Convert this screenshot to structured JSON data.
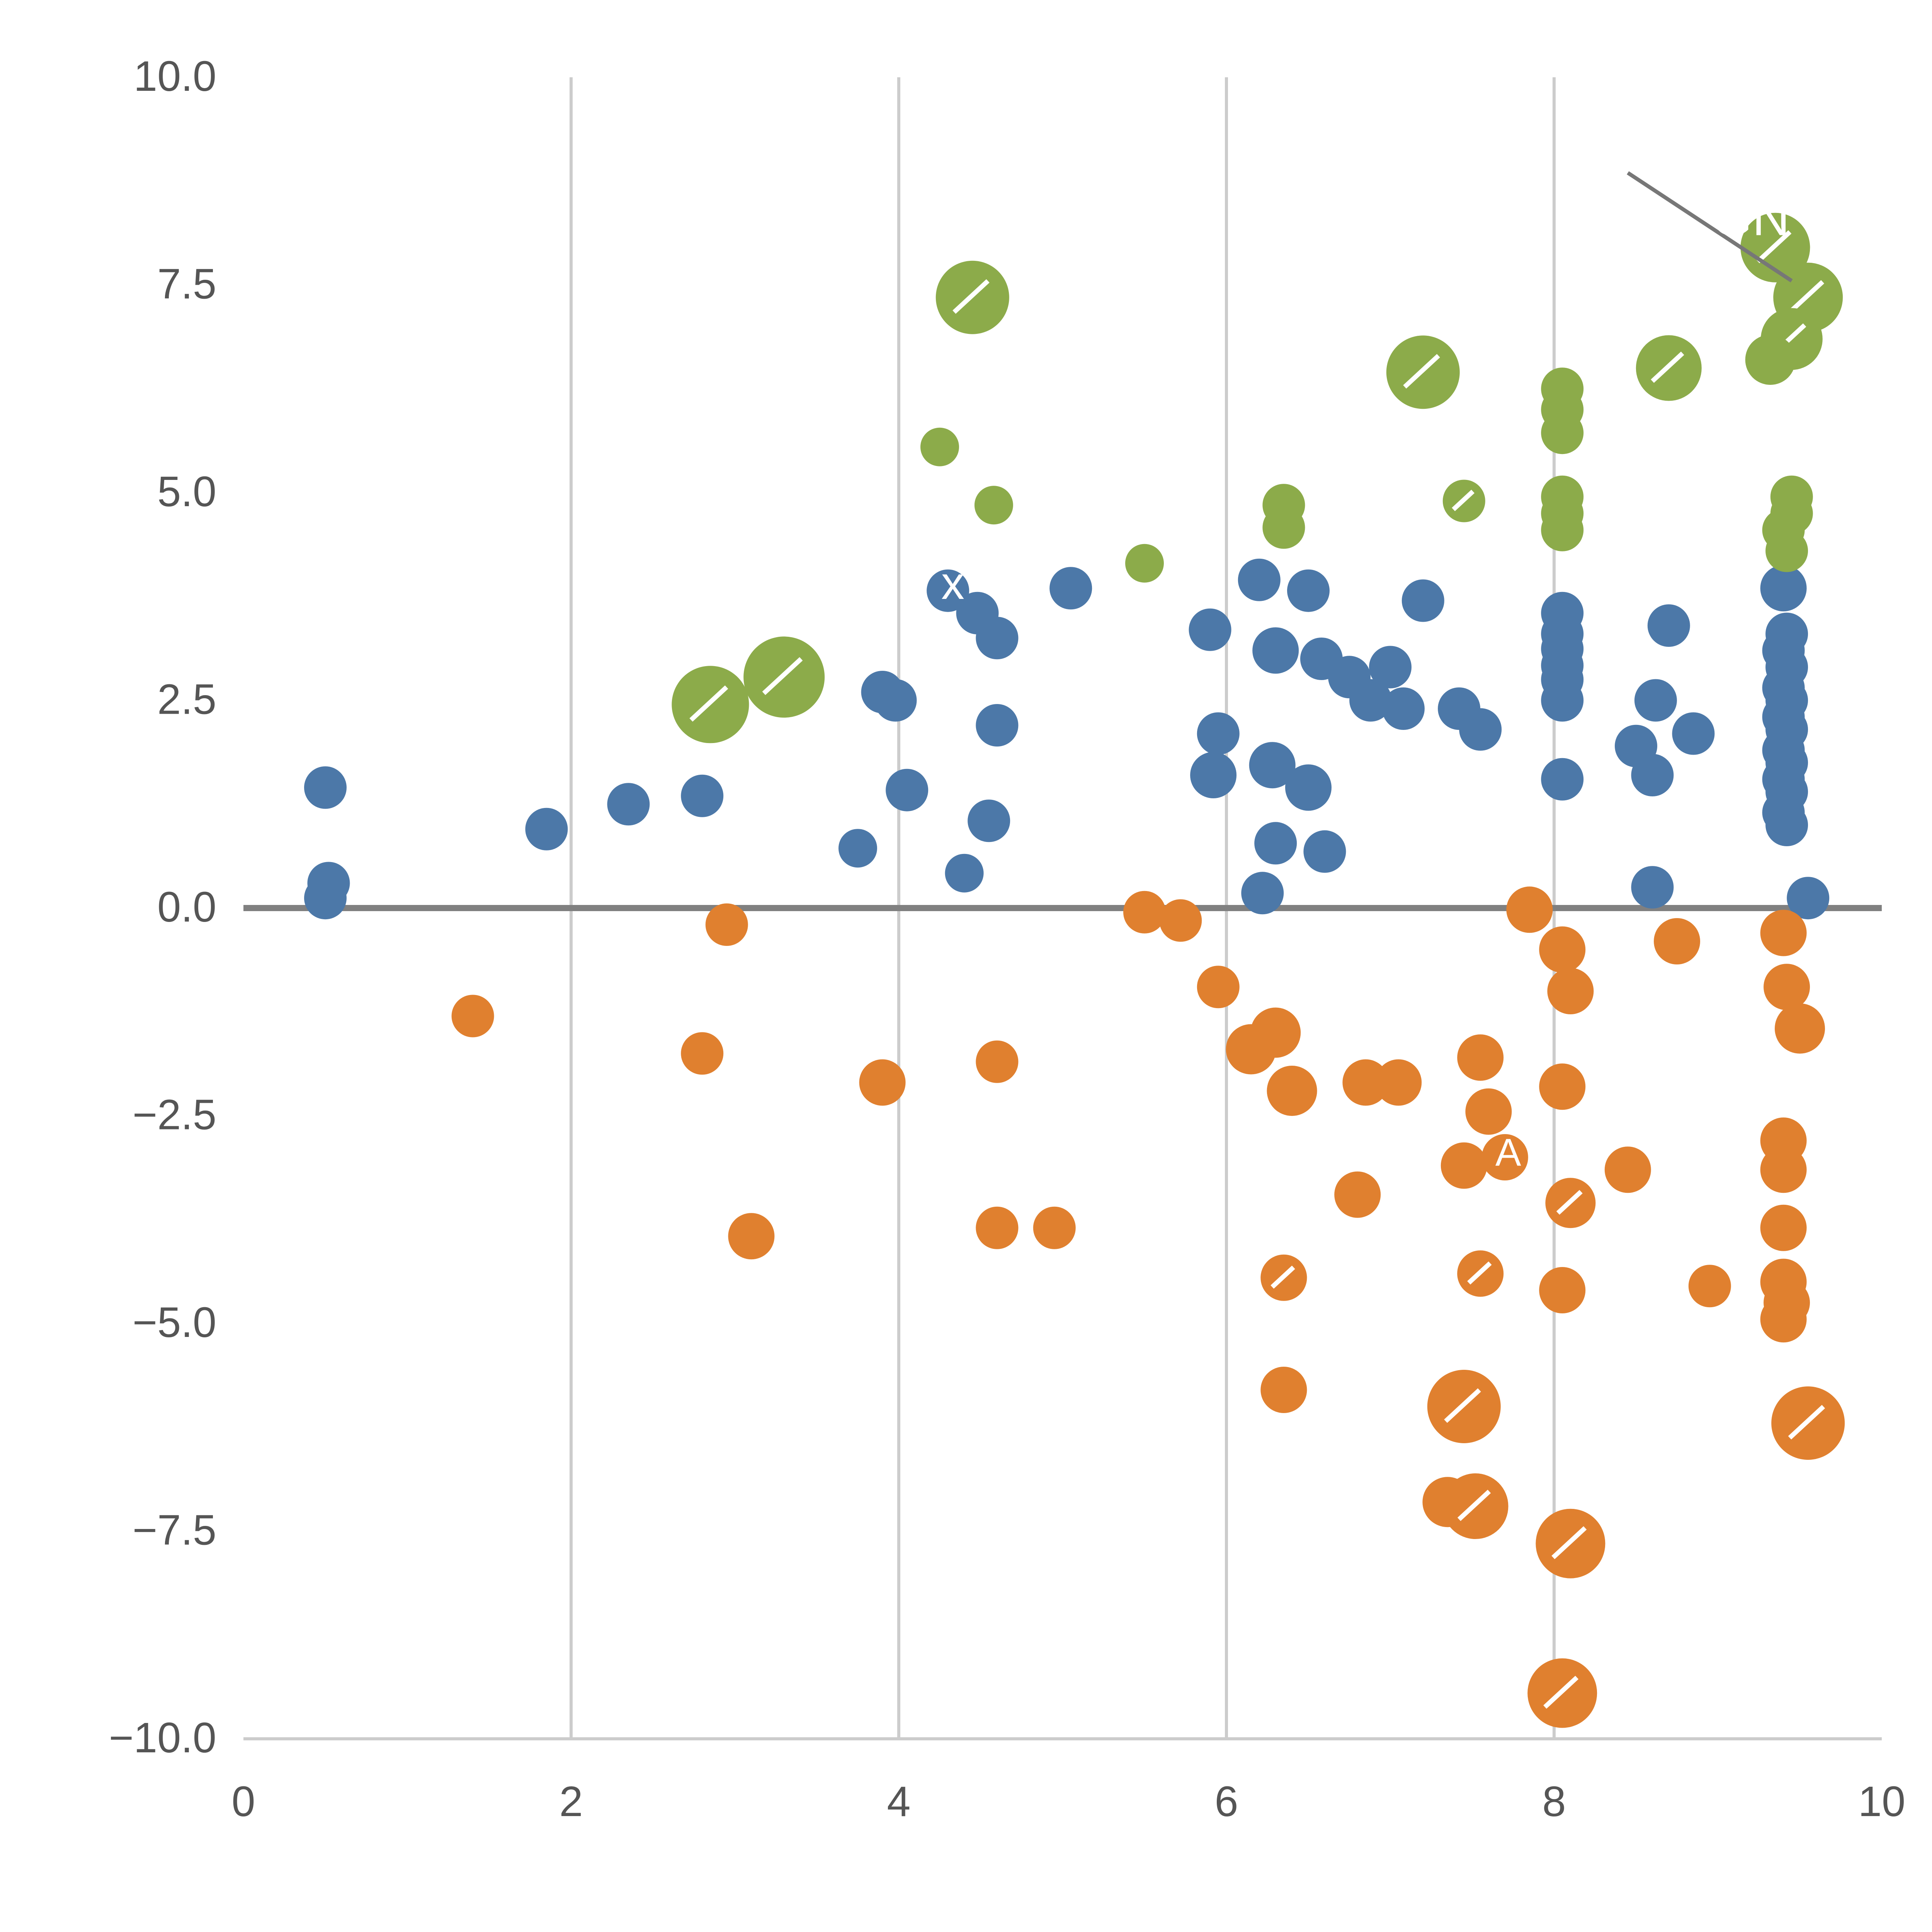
{
  "chart_data": {
    "type": "scatter",
    "title": "",
    "xlabel": "",
    "ylabel": "",
    "xlim": [
      0,
      10
    ],
    "ylim": [
      -10,
      10
    ],
    "grid": "vertical-only",
    "grid_x": [
      2,
      4,
      6,
      8
    ],
    "zero_line": true,
    "legend": "none",
    "x_ticks": [
      "0",
      "2",
      "4",
      "6",
      "8",
      "10"
    ],
    "x_tick_values": [
      0,
      2,
      4,
      6,
      8,
      10
    ],
    "y_ticks": [
      "10.0",
      "7.5",
      "5.0",
      "2.5",
      "0.0",
      "−2.5",
      "−5.0",
      "−7.5",
      "−10.0"
    ],
    "y_tick_values": [
      10,
      7.5,
      5,
      2.5,
      0,
      -2.5,
      -5,
      -7.5,
      -10
    ],
    "colors": {
      "blue": "#4c78a8",
      "orange": "#e0802f",
      "green": "#8cab4a",
      "grid": "#cccccc",
      "zero_line": "#808080",
      "tick_label": "#555555",
      "annotation_line": "#777777",
      "annotation_text": "#ffffff"
    },
    "series": [
      {
        "name": "blue",
        "color_key": "blue",
        "points": [
          [
            0.5,
            1.45,
            11
          ],
          [
            0.52,
            0.3,
            11
          ],
          [
            0.5,
            0.12,
            11
          ],
          [
            1.85,
            0.95,
            11
          ],
          [
            2.35,
            1.25,
            11
          ],
          [
            2.8,
            1.35,
            11
          ],
          [
            3.75,
            0.72,
            10
          ],
          [
            3.9,
            2.6,
            11
          ],
          [
            3.98,
            2.5,
            11
          ],
          [
            4.05,
            1.42,
            11
          ],
          [
            4.3,
            3.82,
            11
          ],
          [
            4.48,
            3.55,
            11
          ],
          [
            4.6,
            3.25,
            11
          ],
          [
            4.6,
            2.2,
            11
          ],
          [
            4.55,
            1.05,
            11
          ],
          [
            4.4,
            0.42,
            10
          ],
          [
            5.05,
            3.85,
            11
          ],
          [
            5.9,
            3.35,
            11
          ],
          [
            5.95,
            2.1,
            11
          ],
          [
            5.92,
            1.6,
            12
          ],
          [
            6.2,
            3.95,
            11
          ],
          [
            6.3,
            3.1,
            12
          ],
          [
            6.28,
            1.72,
            12
          ],
          [
            6.3,
            0.78,
            11
          ],
          [
            6.22,
            0.18,
            11
          ],
          [
            6.5,
            3.82,
            11
          ],
          [
            6.58,
            3.0,
            11
          ],
          [
            6.5,
            1.45,
            12
          ],
          [
            6.6,
            0.68,
            11
          ],
          [
            6.75,
            2.78,
            11
          ],
          [
            6.88,
            2.5,
            11
          ],
          [
            7.0,
            2.9,
            11
          ],
          [
            7.08,
            2.4,
            11
          ],
          [
            7.2,
            3.7,
            11
          ],
          [
            7.42,
            2.4,
            11
          ],
          [
            7.55,
            2.15,
            11
          ],
          [
            8.05,
            3.55,
            11
          ],
          [
            8.05,
            3.3,
            11
          ],
          [
            8.05,
            3.12,
            11
          ],
          [
            8.05,
            2.92,
            11
          ],
          [
            8.05,
            2.75,
            11
          ],
          [
            8.05,
            2.5,
            11
          ],
          [
            8.05,
            1.55,
            11
          ],
          [
            8.5,
            1.95,
            11
          ],
          [
            8.62,
            2.5,
            11
          ],
          [
            8.6,
            1.6,
            11
          ],
          [
            8.7,
            3.4,
            11
          ],
          [
            8.85,
            2.1,
            11
          ],
          [
            8.6,
            0.25,
            11
          ],
          [
            9.4,
            3.85,
            12
          ],
          [
            9.42,
            3.3,
            11
          ],
          [
            9.4,
            3.1,
            11
          ],
          [
            9.42,
            2.9,
            11
          ],
          [
            9.4,
            2.65,
            11
          ],
          [
            9.42,
            2.5,
            11
          ],
          [
            9.4,
            2.3,
            11
          ],
          [
            9.42,
            2.15,
            11
          ],
          [
            9.4,
            1.9,
            11
          ],
          [
            9.42,
            1.75,
            11
          ],
          [
            9.4,
            1.55,
            11
          ],
          [
            9.42,
            1.4,
            11
          ],
          [
            9.4,
            1.15,
            11
          ],
          [
            9.42,
            1.0,
            11
          ],
          [
            9.55,
            0.12,
            11
          ]
        ]
      },
      {
        "name": "orange",
        "color_key": "orange",
        "points": [
          [
            1.4,
            -1.3,
            11
          ],
          [
            2.8,
            -1.75,
            11
          ],
          [
            2.95,
            -0.2,
            11
          ],
          [
            3.1,
            -3.95,
            12
          ],
          [
            3.9,
            -2.1,
            12
          ],
          [
            4.6,
            -1.85,
            11
          ],
          [
            4.6,
            -3.85,
            11
          ],
          [
            4.95,
            -3.85,
            11
          ],
          [
            5.5,
            -0.05,
            11
          ],
          [
            5.72,
            -0.15,
            11
          ],
          [
            5.95,
            -0.95,
            11
          ],
          [
            6.15,
            -1.7,
            13
          ],
          [
            6.3,
            -1.5,
            13
          ],
          [
            6.4,
            -2.2,
            13
          ],
          [
            6.35,
            -4.45,
            12,
            1
          ],
          [
            6.35,
            -5.8,
            12
          ],
          [
            6.8,
            -3.45,
            12
          ],
          [
            6.85,
            -2.1,
            12
          ],
          [
            7.05,
            -2.1,
            12
          ],
          [
            7.45,
            -3.1,
            12
          ],
          [
            7.55,
            -1.8,
            12
          ],
          [
            7.6,
            -2.45,
            12
          ],
          [
            7.7,
            -3.0,
            12
          ],
          [
            7.55,
            -4.4,
            12,
            1
          ],
          [
            7.45,
            -6.0,
            19,
            1
          ],
          [
            7.35,
            -7.15,
            13
          ],
          [
            7.52,
            -7.2,
            17,
            1
          ],
          [
            7.85,
            -0.02,
            12
          ],
          [
            8.05,
            -0.5,
            12
          ],
          [
            8.1,
            -1.0,
            12
          ],
          [
            8.05,
            -2.15,
            12
          ],
          [
            8.1,
            -3.55,
            13,
            1
          ],
          [
            8.05,
            -4.6,
            12
          ],
          [
            8.1,
            -7.65,
            18,
            1
          ],
          [
            8.05,
            -9.45,
            18,
            1
          ],
          [
            8.45,
            -3.15,
            12
          ],
          [
            8.75,
            -0.4,
            12
          ],
          [
            8.95,
            -4.55,
            11
          ],
          [
            9.4,
            -0.3,
            12
          ],
          [
            9.42,
            -0.95,
            12
          ],
          [
            9.5,
            -1.45,
            13
          ],
          [
            9.4,
            -2.8,
            12
          ],
          [
            9.4,
            -3.15,
            12
          ],
          [
            9.4,
            -3.85,
            12
          ],
          [
            9.4,
            -4.5,
            12
          ],
          [
            9.42,
            -4.75,
            12
          ],
          [
            9.4,
            -4.95,
            12
          ],
          [
            9.55,
            -6.2,
            19,
            1
          ]
        ]
      },
      {
        "name": "green",
        "color_key": "green",
        "points": [
          [
            2.85,
            2.45,
            20,
            1
          ],
          [
            3.3,
            2.78,
            21,
            1
          ],
          [
            4.45,
            7.35,
            19,
            1
          ],
          [
            4.25,
            5.55,
            10
          ],
          [
            4.58,
            4.85,
            10
          ],
          [
            5.5,
            4.15,
            10
          ],
          [
            6.35,
            4.85,
            11
          ],
          [
            6.35,
            4.58,
            11
          ],
          [
            7.2,
            6.45,
            19,
            1
          ],
          [
            7.45,
            4.9,
            11,
            1
          ],
          [
            8.05,
            6.25,
            11
          ],
          [
            8.05,
            6.0,
            11
          ],
          [
            8.05,
            5.72,
            11
          ],
          [
            8.05,
            4.95,
            11
          ],
          [
            8.05,
            4.75,
            11
          ],
          [
            8.05,
            4.55,
            11
          ],
          [
            8.7,
            6.5,
            17,
            1
          ],
          [
            9.35,
            7.95,
            18,
            1
          ],
          [
            9.55,
            7.35,
            18,
            1
          ],
          [
            9.45,
            6.85,
            16,
            1
          ],
          [
            9.32,
            6.6,
            13
          ],
          [
            9.45,
            4.95,
            11
          ],
          [
            9.45,
            4.75,
            11
          ],
          [
            9.4,
            4.55,
            11
          ],
          [
            9.42,
            4.3,
            11
          ]
        ]
      }
    ],
    "annotations": {
      "leader_line": {
        "x1": 8.45,
        "y1": 8.85,
        "x2": 9.45,
        "y2": 7.55
      },
      "labels": [
        {
          "text": "GN",
          "x": 9.2,
          "y": 8.1,
          "size": 27
        },
        {
          "text": "x",
          "x": 4.33,
          "y": 3.72,
          "size": 24
        },
        {
          "text": "A",
          "x": 7.72,
          "y": -3.1,
          "size": 20
        }
      ]
    }
  }
}
